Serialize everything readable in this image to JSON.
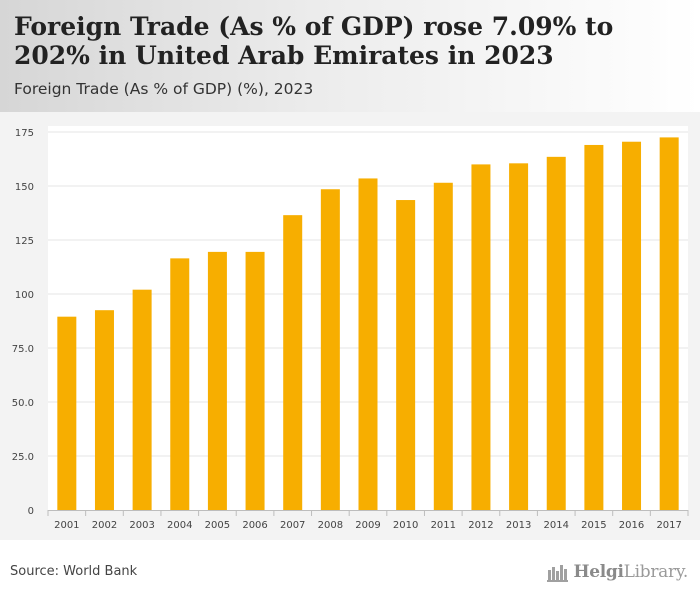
{
  "header": {
    "title": "Foreign Trade (As % of GDP) rose 7.09% to 202% in United Arab Emirates in 2023",
    "subtitle": "Foreign Trade (As % of GDP) (%), 2023"
  },
  "footer": {
    "source": "Source: World Bank",
    "brand_bold": "Helgi",
    "brand_rest": "Library."
  },
  "colors": {
    "bar": "#F7AE00",
    "plot_bg": "#FFFFFF",
    "grid": "#E6E6E6",
    "tick_text": "#444444"
  },
  "chart_data": {
    "type": "bar",
    "categories": [
      "2001",
      "2002",
      "2003",
      "2004",
      "2005",
      "2006",
      "2007",
      "2008",
      "2009",
      "2010",
      "2011",
      "2012",
      "2013",
      "2014",
      "2015",
      "2016",
      "2017"
    ],
    "values": [
      89.5,
      92.5,
      102,
      116.5,
      119.5,
      119.5,
      136.5,
      148.5,
      153.5,
      143.5,
      151.5,
      160,
      160.5,
      163.5,
      169,
      170.5,
      172.5
    ],
    "yticks": [
      "0",
      "25.0",
      "50.0",
      "75.0",
      "100",
      "125",
      "150",
      "175"
    ],
    "ylim": [
      0,
      175
    ],
    "grid": true,
    "title": "",
    "xlabel": "",
    "ylabel": ""
  }
}
